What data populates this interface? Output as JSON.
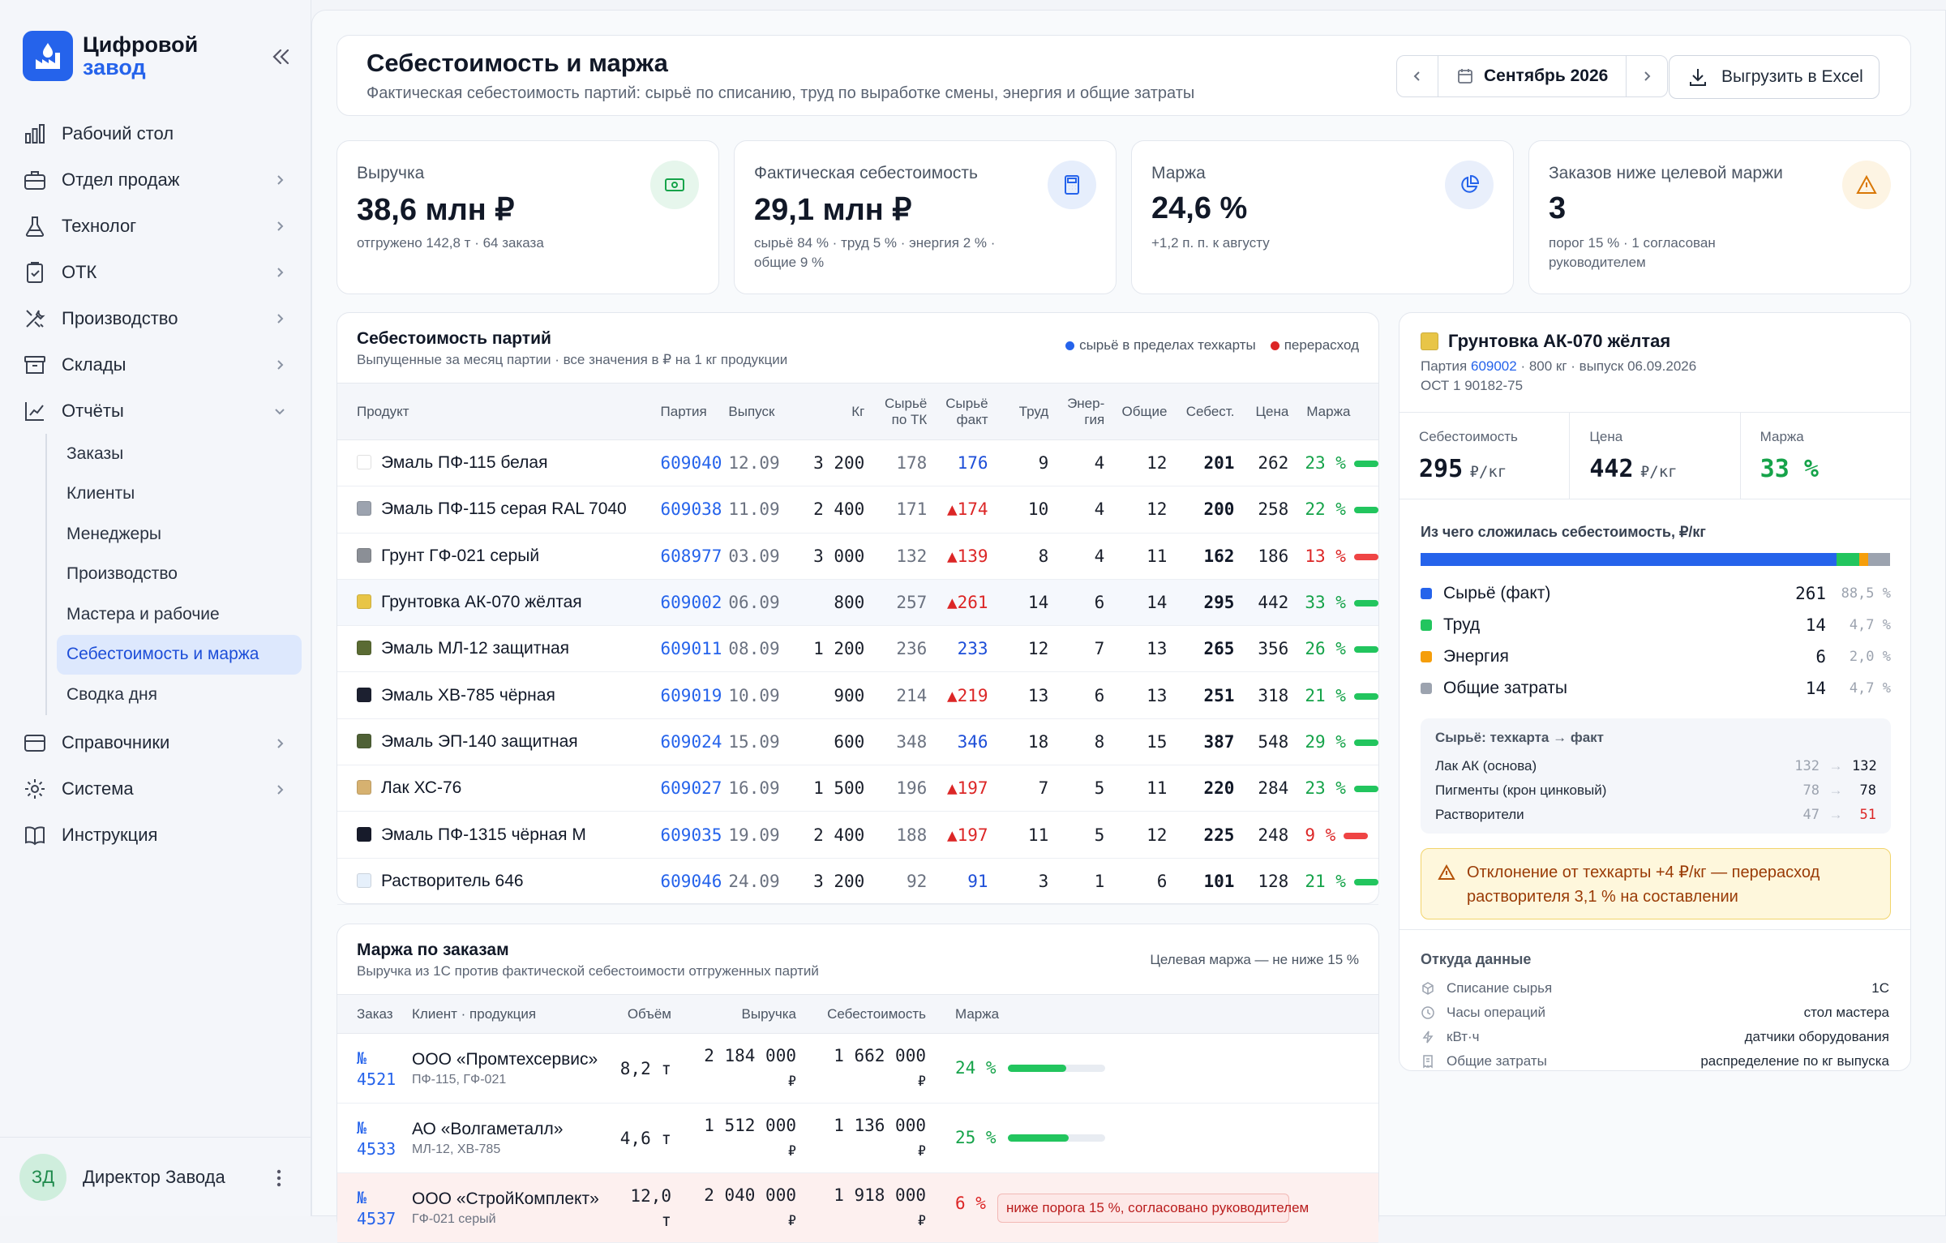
{
  "app": {
    "name_line1": "Цифровой",
    "name_line2": "завод"
  },
  "sidebar": {
    "items": [
      {
        "label": "Рабочий стол",
        "icon": "chart-bars-icon"
      },
      {
        "label": "Отдел продаж",
        "icon": "briefcase-icon"
      },
      {
        "label": "Технолог",
        "icon": "flask-icon"
      },
      {
        "label": "ОТК",
        "icon": "clipboard-check-icon"
      },
      {
        "label": "Производство",
        "icon": "tools-icon"
      },
      {
        "label": "Склады",
        "icon": "archive-icon"
      },
      {
        "label": "Отчёты",
        "icon": "report-icon"
      }
    ],
    "sub_items": [
      "Заказы",
      "Клиенты",
      "Менеджеры",
      "Производство",
      "Мастера и рабочие",
      "Себестоимость и маржа",
      "Сводка дня"
    ],
    "bottom_items": [
      {
        "label": "Справочники",
        "icon": "database-icon"
      },
      {
        "label": "Система",
        "icon": "gear-icon"
      },
      {
        "label": "Инструкция",
        "icon": "book-icon"
      }
    ],
    "user": {
      "initials": "ЗД",
      "name": "Директор Завода"
    }
  },
  "header": {
    "title": "Себестоимость и маржа",
    "subtitle": "Фактическая себестоимость партий: сырьё по списанию, труд по выработке смены, энергия и общие затраты",
    "period": "Сентябрь 2026",
    "export_label": "Выгрузить в Excel"
  },
  "kpis": [
    {
      "label": "Выручка",
      "value": "38,6 млн ₽",
      "sub": "отгружено 142,8 т · 64 заказа",
      "icon": "money-icon",
      "color": "#16a34a",
      "bg": "#e6f6ec"
    },
    {
      "label": "Фактическая себестоимость",
      "value": "29,1 млн ₽",
      "sub": "сырьё 84 % · труд 5 % · энергия 2 % · общие 9 %",
      "icon": "calculator-icon",
      "color": "#2563eb",
      "bg": "#e6eefc"
    },
    {
      "label": "Маржа",
      "value": "24,6 %",
      "sub": "+1,2 п. п. к августу",
      "icon": "pie-chart-icon",
      "color": "#2563eb",
      "bg": "#e9effb"
    },
    {
      "label": "Заказов ниже целевой маржи",
      "value": "3",
      "sub": "порог 15 % · 1 согласован руководителем",
      "icon": "warning-icon",
      "color": "#d97706",
      "bg": "#fdf4e3"
    }
  ],
  "batches": {
    "title": "Себестоимость партий",
    "subtitle": "Выпущенные за месяц партии · все значения в ₽ на 1 кг продукции",
    "legend": [
      "сырьё в пределах техкарты",
      "перерасход"
    ],
    "columns": [
      "Продукт",
      "Партия",
      "Выпуск",
      "Кг",
      "Сырьё по ТК",
      "Сырьё факт",
      "Труд",
      "Энер-гия",
      "Общие",
      "Себест.",
      "Цена",
      "Маржа"
    ],
    "rows": [
      {
        "product": "Эмаль ПФ-115 белая",
        "swatch": "#ffffff",
        "lot": "609040",
        "date": "12.09",
        "kg": "3 200",
        "tk": "178",
        "fact": "176",
        "over": false,
        "labor": "9",
        "energy": "4",
        "general": "12",
        "cost": "201",
        "price": "262",
        "margin": "23 %",
        "low": false
      },
      {
        "product": "Эмаль ПФ-115 серая RAL 7040",
        "swatch": "#9ca3af",
        "lot": "609038",
        "date": "11.09",
        "kg": "2 400",
        "tk": "171",
        "fact": "▲174",
        "over": true,
        "labor": "10",
        "energy": "4",
        "general": "12",
        "cost": "200",
        "price": "258",
        "margin": "22 %",
        "low": false
      },
      {
        "product": "Грунт ГФ-021 серый",
        "swatch": "#8b8f96",
        "lot": "608977",
        "date": "03.09",
        "kg": "3 000",
        "tk": "132",
        "fact": "▲139",
        "over": true,
        "labor": "8",
        "energy": "4",
        "general": "11",
        "cost": "162",
        "price": "186",
        "margin": "13 %",
        "low": true
      },
      {
        "product": "Грунтовка АК-070 жёлтая",
        "swatch": "#e8c547",
        "lot": "609002",
        "date": "06.09",
        "kg": "800",
        "tk": "257",
        "fact": "▲261",
        "over": true,
        "labor": "14",
        "energy": "6",
        "general": "14",
        "cost": "295",
        "price": "442",
        "margin": "33 %",
        "low": false,
        "selected": true
      },
      {
        "product": "Эмаль МЛ-12 защитная",
        "swatch": "#5a6b33",
        "lot": "609011",
        "date": "08.09",
        "kg": "1 200",
        "tk": "236",
        "fact": "233",
        "over": false,
        "labor": "12",
        "energy": "7",
        "general": "13",
        "cost": "265",
        "price": "356",
        "margin": "26 %",
        "low": false
      },
      {
        "product": "Эмаль ХВ-785 чёрная",
        "swatch": "#1c2030",
        "lot": "609019",
        "date": "10.09",
        "kg": "900",
        "tk": "214",
        "fact": "▲219",
        "over": true,
        "labor": "13",
        "energy": "6",
        "general": "13",
        "cost": "251",
        "price": "318",
        "margin": "21 %",
        "low": false
      },
      {
        "product": "Эмаль ЭП-140 защитная",
        "swatch": "#4f6136",
        "lot": "609024",
        "date": "15.09",
        "kg": "600",
        "tk": "348",
        "fact": "346",
        "over": false,
        "labor": "18",
        "energy": "8",
        "general": "15",
        "cost": "387",
        "price": "548",
        "margin": "29 %",
        "low": false
      },
      {
        "product": "Лак ХС-76",
        "swatch": "#d6b170",
        "lot": "609027",
        "date": "16.09",
        "kg": "1 500",
        "tk": "196",
        "fact": "▲197",
        "over": true,
        "labor": "7",
        "energy": "5",
        "general": "11",
        "cost": "220",
        "price": "284",
        "margin": "23 %",
        "low": false
      },
      {
        "product": "Эмаль ПФ-1315 чёрная М",
        "swatch": "#171b2b",
        "lot": "609035",
        "date": "19.09",
        "kg": "2 400",
        "tk": "188",
        "fact": "▲197",
        "over": true,
        "labor": "11",
        "energy": "5",
        "general": "12",
        "cost": "225",
        "price": "248",
        "margin": "9 %",
        "low": true
      },
      {
        "product": "Растворитель 646",
        "swatch": "#e6f0fb",
        "lot": "609046",
        "date": "24.09",
        "kg": "3 200",
        "tk": "92",
        "fact": "91",
        "over": false,
        "labor": "3",
        "energy": "1",
        "general": "6",
        "cost": "101",
        "price": "128",
        "margin": "21 %",
        "low": false
      }
    ]
  },
  "orders": {
    "title": "Маржа по заказам",
    "subtitle": "Выручка из 1С против фактической себестоимости отгруженных партий",
    "target": "Целевая маржа — не ниже 15 %",
    "columns": [
      "Заказ",
      "Клиент · продукция",
      "Объём",
      "Выручка",
      "Себестоимость",
      "Маржа"
    ],
    "rows": [
      {
        "no_prefix": "№",
        "no": "4521",
        "client": "ООО «Промтехсервис»",
        "products": "ПФ-115, ГФ-021",
        "volume": "8,2 т",
        "revenue": "2 184 000",
        "cost": "1 662 000",
        "currency": "₽",
        "margin": "24 %",
        "margin_pct": 24,
        "warn": false
      },
      {
        "no_prefix": "№",
        "no": "4533",
        "client": "АО «Волгаметалл»",
        "products": "МЛ-12, ХВ-785",
        "volume": "4,6 т",
        "revenue": "1 512 000",
        "cost": "1 136 000",
        "currency": "₽",
        "margin": "25 %",
        "margin_pct": 25,
        "warn": false
      },
      {
        "no_prefix": "№",
        "no": "4537",
        "client": "ООО «СтройКомплект»",
        "products": "ГФ-021 серый",
        "volume": "12,0",
        "volume_unit": "т",
        "revenue": "2 040 000",
        "cost": "1 918 000",
        "currency": "₽",
        "margin": "6 %",
        "margin_pct": 6,
        "warn": true,
        "warn_text": "ниже порога 15 %, согласовано руководителем"
      }
    ]
  },
  "detail": {
    "product": "Грунтовка АК-070 жёлтая",
    "swatch": "#e8c547",
    "lot_prefix": "Партия",
    "lot": "609002",
    "lot_info": "· 800 кг · выпуск 06.09.2026",
    "standard": "ОСТ 1 90182-75",
    "metrics": [
      {
        "label": "Себестоимость",
        "value": "295",
        "unit": "₽/кг",
        "color": "#111827"
      },
      {
        "label": "Цена",
        "value": "442",
        "unit": "₽/кг",
        "color": "#111827"
      },
      {
        "label": "Маржа",
        "value": "33 %",
        "unit": "",
        "color": "#16a34a"
      }
    ],
    "breakdown_title": "Из чего сложилась себестоимость, ₽/кг",
    "breakdown": [
      {
        "label": "Сырьё (факт)",
        "value": "261",
        "pct": "88,5 %",
        "share": 88.5,
        "color": "#2563eb"
      },
      {
        "label": "Труд",
        "value": "14",
        "pct": "4,7 %",
        "share": 4.7,
        "color": "#22c55e"
      },
      {
        "label": "Энергия",
        "value": "6",
        "pct": "2,0 %",
        "share": 2.0,
        "color": "#f59e0b"
      },
      {
        "label": "Общие затраты",
        "value": "14",
        "pct": "4,7 %",
        "share": 4.7,
        "color": "#9ca3af"
      }
    ],
    "tk_title": "Сырьё: техкарта → факт",
    "tk_rows": [
      {
        "name": "Лак АК (основа)",
        "plan": "132",
        "fact": "132",
        "over": false
      },
      {
        "name": "Пигменты (крон цинковый)",
        "plan": "78",
        "fact": "78",
        "over": false
      },
      {
        "name": "Растворители",
        "plan": "47",
        "fact": "51",
        "over": true
      }
    ],
    "alert": "Отклонение от техкарты +4 ₽/кг — перерасход растворителя 3,1 % на составлении",
    "sources_title": "Откуда данные",
    "sources": [
      {
        "label": "Списание сырья",
        "value": "1С",
        "icon": "cube-icon"
      },
      {
        "label": "Часы операций",
        "value": "стол мастера",
        "icon": "clock-icon"
      },
      {
        "label": "кВт·ч",
        "value": "датчики оборудования",
        "icon": "bolt-icon"
      },
      {
        "label": "Общие затраты",
        "value": "распределение по кг выпуска",
        "icon": "receipt-icon"
      }
    ]
  }
}
